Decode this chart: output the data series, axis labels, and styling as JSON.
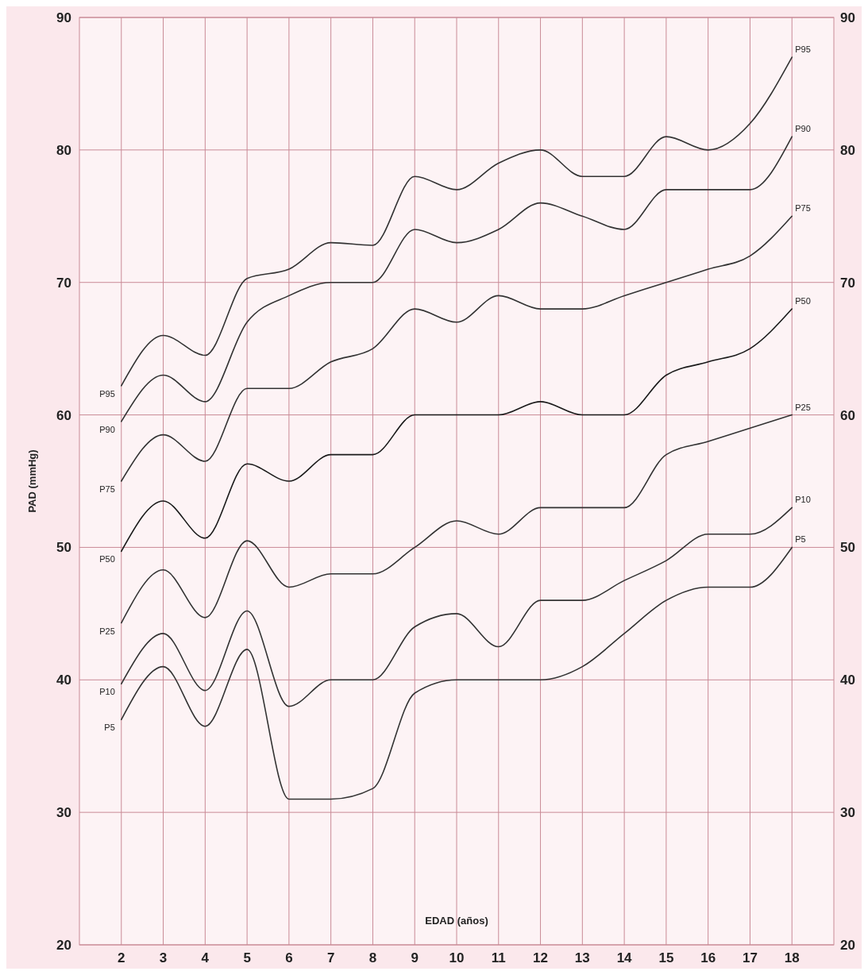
{
  "chart_data": {
    "type": "line",
    "xlabel": "EDAD (años)",
    "ylabel": "PAD (mmHg)",
    "x": [
      2,
      3,
      4,
      5,
      6,
      7,
      8,
      9,
      10,
      11,
      12,
      13,
      14,
      15,
      16,
      17,
      18
    ],
    "xlim": [
      1,
      19
    ],
    "xticks": [
      2,
      3,
      4,
      5,
      6,
      7,
      8,
      9,
      10,
      11,
      12,
      13,
      14,
      15,
      16,
      17,
      18
    ],
    "ylim": [
      20,
      90
    ],
    "yticks": [
      20,
      30,
      40,
      50,
      60,
      70,
      80,
      90
    ],
    "y2lim": [
      20,
      90
    ],
    "y2ticks": [
      20,
      30,
      40,
      50,
      60,
      70,
      80,
      90
    ],
    "grid": true,
    "marker": "none",
    "line_style": "solid",
    "series": [
      {
        "name": "P95",
        "color": "#333333",
        "values": [
          62.2,
          66,
          64.5,
          70.3,
          71,
          73,
          72.8,
          78,
          77,
          79,
          80,
          78,
          78,
          81,
          80,
          82,
          87
        ]
      },
      {
        "name": "P90",
        "color": "#333333",
        "values": [
          59.5,
          63,
          61,
          67,
          69,
          70,
          70,
          74,
          73,
          74,
          76,
          75,
          74,
          77,
          77,
          77,
          81
        ]
      },
      {
        "name": "P75",
        "color": "#333333",
        "values": [
          55,
          58.5,
          56.5,
          62,
          62,
          64,
          65,
          68,
          67,
          69,
          68,
          68,
          69,
          70,
          71,
          72,
          75
        ]
      },
      {
        "name": "P50",
        "color": "#1a1a1a",
        "values": [
          49.7,
          53.5,
          50.7,
          56.3,
          55,
          57,
          57,
          60,
          60,
          60,
          61,
          60,
          60,
          63,
          64,
          65,
          68
        ]
      },
      {
        "name": "P25",
        "color": "#333333",
        "values": [
          44.3,
          48.3,
          44.7,
          50.5,
          47,
          48,
          48,
          50,
          52,
          51,
          53,
          53,
          53,
          57,
          58,
          59,
          60
        ]
      },
      {
        "name": "P10",
        "color": "#333333",
        "values": [
          39.7,
          43.5,
          39.2,
          45.2,
          38,
          40,
          40,
          44,
          45,
          42.5,
          46,
          46,
          47.5,
          49,
          51,
          51,
          53
        ]
      },
      {
        "name": "P5",
        "color": "#333333",
        "values": [
          37,
          41,
          36.5,
          42.3,
          31,
          31,
          31.8,
          39,
          40,
          40,
          40,
          41,
          43.5,
          46,
          47,
          47,
          50
        ]
      }
    ]
  }
}
